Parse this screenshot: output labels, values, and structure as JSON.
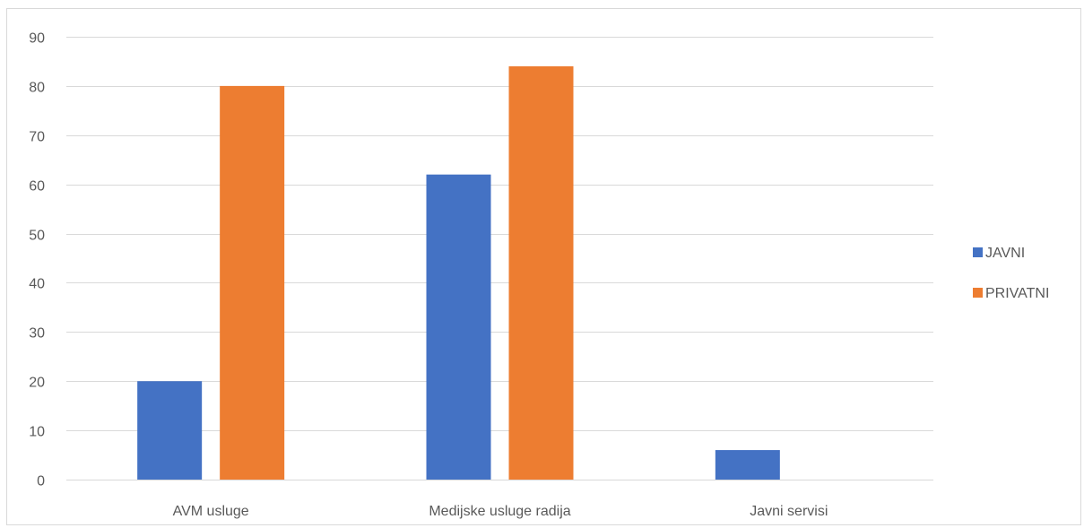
{
  "chart_data": {
    "type": "bar",
    "categories": [
      "AVM usluge",
      "Medijske usluge radija",
      "Javni servisi"
    ],
    "series": [
      {
        "name": "JAVNI",
        "values": [
          20,
          62,
          6
        ],
        "color": "#4472c4"
      },
      {
        "name": "PRIVATNI",
        "values": [
          80,
          84,
          0
        ],
        "color": "#ed7d31"
      }
    ],
    "y_ticks": [
      "0",
      "10",
      "20",
      "30",
      "40",
      "50",
      "60",
      "70",
      "80",
      "90"
    ],
    "ylim": [
      0,
      90
    ],
    "grid": true,
    "legend_position": "right"
  }
}
